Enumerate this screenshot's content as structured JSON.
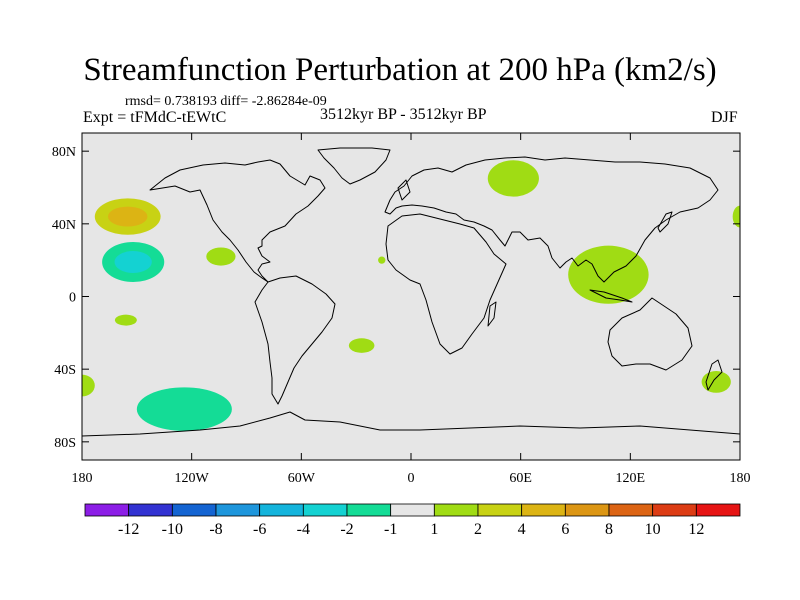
{
  "title": "Streamfunction Perturbation at 200 hPa (km2/s)",
  "stats_line": "rmsd= 0.738193 diff= -2.86284e-09",
  "experiment_label": "Expt = tFMdC-tEWtC",
  "period_label": "3512kyr BP - 3512kyr BP",
  "season_label": "DJF",
  "chart_data": {
    "type": "contour-map",
    "variable": "Streamfunction Perturbation at 200 hPa",
    "units": "km2/s",
    "xlim": [
      -180,
      180
    ],
    "ylim": [
      -90,
      90
    ],
    "x_ticks": [
      {
        "value": -180,
        "label": "180"
      },
      {
        "value": -120,
        "label": "120W"
      },
      {
        "value": -60,
        "label": "60W"
      },
      {
        "value": 0,
        "label": "0"
      },
      {
        "value": 60,
        "label": "60E"
      },
      {
        "value": 120,
        "label": "120E"
      },
      {
        "value": 180,
        "label": "180"
      }
    ],
    "y_ticks": [
      {
        "value": 80,
        "label": "80N"
      },
      {
        "value": 40,
        "label": "40N"
      },
      {
        "value": 0,
        "label": "0"
      },
      {
        "value": -40,
        "label": "40S"
      },
      {
        "value": -80,
        "label": "80S"
      }
    ],
    "colorbar": {
      "colors": [
        "#8c1ee6",
        "#3232d2",
        "#1464d2",
        "#1e96dc",
        "#14b4dc",
        "#14d2d2",
        "#14dc96",
        "#e6e6e6",
        "#a0dc14",
        "#c8d214",
        "#dcb414",
        "#dc9614",
        "#dc6414",
        "#dc3c14",
        "#e61414"
      ],
      "boundaries": [
        -12,
        -10,
        -8,
        -6,
        -4,
        -2,
        -1,
        1,
        2,
        4,
        6,
        8,
        10,
        12
      ],
      "labels": [
        "-12",
        "-10",
        "-8",
        "-6",
        "-4",
        "-2",
        "-1",
        "1",
        "2",
        "4",
        "6",
        "8",
        "10",
        "12"
      ]
    },
    "anomaly_regions": [
      {
        "name": "north-pacific-high",
        "lon": -155,
        "lat": 44,
        "dlon": 18,
        "dlat": 10,
        "value": 2,
        "core_value": 4
      },
      {
        "name": "subtropical-pacific-low",
        "lon": -152,
        "lat": 19,
        "dlon": 17,
        "dlat": 11,
        "value": -2,
        "core_value": -4
      },
      {
        "name": "gulf-of-mexico",
        "lon": -104,
        "lat": 22,
        "dlon": 8,
        "dlat": 5,
        "value": 1
      },
      {
        "name": "north-pacific-small",
        "lon": -125,
        "lat": 61,
        "dlon": 2,
        "dlat": 2,
        "value": -1
      },
      {
        "name": "tropical-atlantic-small",
        "lon": -16,
        "lat": 20,
        "dlon": 2,
        "dlat": 2,
        "value": 1
      },
      {
        "name": "eastern-pacific-small",
        "lon": -101,
        "lat": 0,
        "dlon": 2,
        "dlat": 2,
        "value": -1
      },
      {
        "name": "south-pacific-tropical",
        "lon": -156,
        "lat": -13,
        "dlon": 6,
        "dlat": 3,
        "value": 1
      },
      {
        "name": "south-pacific-subtropical",
        "lon": -149,
        "lat": -26,
        "dlon": 6,
        "dlat": 3,
        "value": -1
      },
      {
        "name": "south-atlantic",
        "lon": -27,
        "lat": -27,
        "dlon": 7,
        "dlat": 4,
        "value": 1
      },
      {
        "name": "southern-pacific-large",
        "lon": -124,
        "lat": -62,
        "dlon": 26,
        "dlat": 12,
        "value": -2
      },
      {
        "name": "south-pacific-west-edge",
        "lon": -180,
        "lat": -49,
        "dlon": 7,
        "dlat": 6,
        "value": 1
      },
      {
        "name": "southern-indian-ocean",
        "lon": 17,
        "lat": -44,
        "dlon": 8,
        "dlat": 3,
        "value": -1
      },
      {
        "name": "russia-arctic",
        "lon": 56,
        "lat": 65,
        "dlon": 14,
        "dlat": 10,
        "value": 1
      },
      {
        "name": "central-asia",
        "lon": 77,
        "lat": 42,
        "dlon": 11,
        "dlat": 8,
        "value": -1
      },
      {
        "name": "east-asia-tropics",
        "lon": 108,
        "lat": 12,
        "dlon": 22,
        "dlat": 16,
        "value": 1
      },
      {
        "name": "northwest-pacific-edge",
        "lon": 180,
        "lat": 44,
        "dlon": 4,
        "dlat": 6,
        "value": 1
      },
      {
        "name": "central-pacific-tropical",
        "lon": 176,
        "lat": 18,
        "dlon": 8,
        "dlat": 10,
        "value": -1
      },
      {
        "name": "southern-ocean-east",
        "lon": 167,
        "lat": -47,
        "dlon": 8,
        "dlat": 6,
        "value": 1
      }
    ]
  }
}
